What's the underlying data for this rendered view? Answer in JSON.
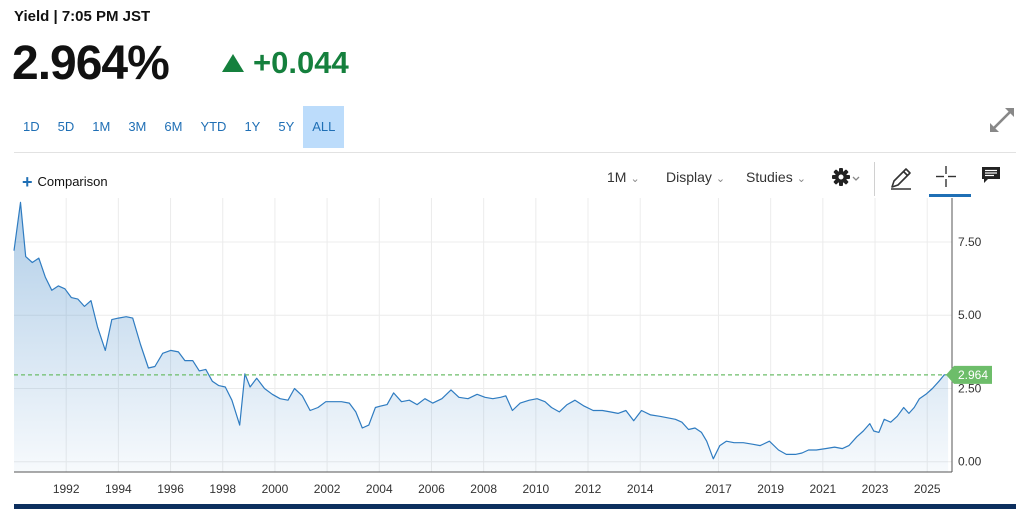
{
  "header": {
    "title": "Yield | 7:05 PM JST",
    "price": "2.964%",
    "change": "+0.044"
  },
  "ranges": [
    {
      "label": "1D",
      "active": false
    },
    {
      "label": "5D",
      "active": false
    },
    {
      "label": "1M",
      "active": false
    },
    {
      "label": "3M",
      "active": false
    },
    {
      "label": "6M",
      "active": false
    },
    {
      "label": "YTD",
      "active": false
    },
    {
      "label": "1Y",
      "active": false
    },
    {
      "label": "5Y",
      "active": false
    },
    {
      "label": "ALL",
      "active": true
    }
  ],
  "toolbar": {
    "comparison_label": "Comparison",
    "interval_label": "1M",
    "display_label": "Display",
    "studies_label": "Studies"
  },
  "colors": {
    "accent": "#1f6fb5",
    "up": "#15803d",
    "line": "#2f7cc1",
    "badge": "#6dbd6a"
  },
  "chart_data": {
    "type": "area",
    "xlabel": "",
    "ylabel": "",
    "xlim": [
      1990.0,
      2025.95
    ],
    "ylim": [
      -0.35,
      9.0
    ],
    "y_ticks": [
      "7.50",
      "5.00",
      "2.50",
      "0.00"
    ],
    "x_ticks": [
      "1992",
      "1994",
      "1996",
      "1998",
      "2000",
      "2002",
      "2004",
      "2006",
      "2008",
      "2010",
      "2012",
      "2014",
      "2017",
      "2019",
      "2021",
      "2023",
      "2025"
    ],
    "last_value": "2.964",
    "reference_line": 2.964,
    "grid": true,
    "x": [
      1990.0,
      1990.25,
      1990.45,
      1990.7,
      1990.95,
      1991.2,
      1991.45,
      1991.7,
      1991.95,
      1992.2,
      1992.45,
      1992.7,
      1992.95,
      1993.2,
      1993.5,
      1993.75,
      1994.0,
      1994.3,
      1994.55,
      1994.85,
      1995.15,
      1995.4,
      1995.7,
      1996.0,
      1996.3,
      1996.55,
      1996.85,
      1997.1,
      1997.35,
      1997.6,
      1997.85,
      1998.1,
      1998.35,
      1998.65,
      1998.85,
      1999.05,
      1999.3,
      1999.6,
      1999.9,
      2000.2,
      2000.5,
      2000.75,
      2001.05,
      2001.35,
      2001.65,
      2001.95,
      2002.25,
      2002.55,
      2002.85,
      2003.1,
      2003.35,
      2003.6,
      2003.85,
      2004.05,
      2004.3,
      2004.55,
      2004.85,
      2005.15,
      2005.45,
      2005.75,
      2006.05,
      2006.4,
      2006.75,
      2007.05,
      2007.4,
      2007.75,
      2008.05,
      2008.35,
      2008.65,
      2008.85,
      2009.1,
      2009.4,
      2009.75,
      2010.05,
      2010.35,
      2010.6,
      2010.9,
      2011.2,
      2011.5,
      2011.85,
      2012.2,
      2012.55,
      2012.85,
      2013.15,
      2013.45,
      2013.75,
      2014.05,
      2014.4,
      2014.75,
      2015.05,
      2015.35,
      2015.6,
      2015.85,
      2016.1,
      2016.35,
      2016.55,
      2016.8,
      2017.05,
      2017.3,
      2017.6,
      2017.95,
      2018.3,
      2018.6,
      2018.95,
      2019.3,
      2019.6,
      2019.95,
      2020.2,
      2020.45,
      2020.75,
      2021.1,
      2021.45,
      2021.75,
      2022.0,
      2022.3,
      2022.55,
      2022.8,
      2022.95,
      2023.15,
      2023.35,
      2023.6,
      2023.85,
      2024.1,
      2024.3,
      2024.5,
      2024.7,
      2024.95,
      2025.2,
      2025.45,
      2025.65,
      2025.8
    ],
    "values": [
      7.2,
      8.85,
      7.0,
      6.8,
      6.95,
      6.3,
      5.85,
      6.0,
      5.9,
      5.6,
      5.55,
      5.3,
      5.5,
      4.6,
      3.8,
      4.85,
      4.9,
      4.95,
      4.9,
      4.0,
      3.2,
      3.25,
      3.7,
      3.8,
      3.75,
      3.45,
      3.45,
      3.1,
      3.15,
      2.75,
      2.6,
      2.55,
      2.1,
      1.25,
      3.0,
      2.55,
      2.85,
      2.5,
      2.3,
      2.15,
      2.1,
      2.5,
      2.25,
      1.75,
      1.85,
      2.05,
      2.05,
      2.05,
      2.0,
      1.7,
      1.15,
      1.25,
      1.85,
      1.9,
      1.95,
      2.35,
      2.05,
      2.1,
      1.95,
      2.15,
      2.0,
      2.15,
      2.45,
      2.2,
      2.15,
      2.3,
      2.2,
      2.15,
      2.2,
      2.25,
      1.75,
      2.0,
      2.1,
      2.15,
      2.05,
      1.85,
      1.7,
      1.95,
      2.1,
      1.9,
      1.75,
      1.75,
      1.7,
      1.65,
      1.75,
      1.4,
      1.75,
      1.6,
      1.55,
      1.5,
      1.45,
      1.35,
      1.1,
      1.15,
      1.0,
      0.7,
      0.1,
      0.55,
      0.7,
      0.65,
      0.65,
      0.6,
      0.55,
      0.7,
      0.4,
      0.25,
      0.25,
      0.3,
      0.4,
      0.4,
      0.45,
      0.5,
      0.45,
      0.55,
      0.85,
      1.05,
      1.3,
      1.05,
      1.0,
      1.45,
      1.35,
      1.55,
      1.85,
      1.65,
      1.85,
      2.15,
      2.3,
      2.5,
      2.75,
      2.964,
      2.964
    ]
  }
}
